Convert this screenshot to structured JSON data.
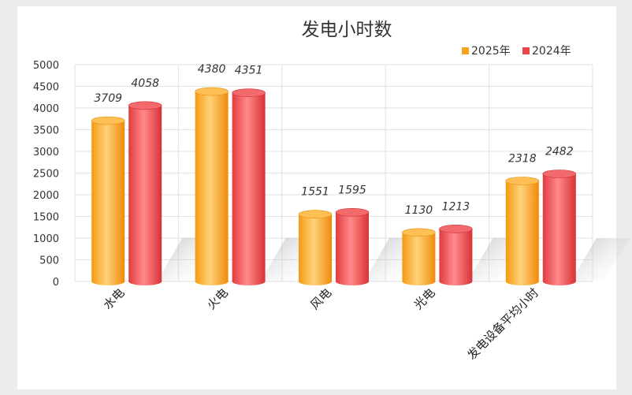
{
  "chart_data": {
    "type": "bar",
    "title": "发电小时数",
    "categories": [
      "水电",
      "火电",
      "风电",
      "光电",
      "发电设备平均小时"
    ],
    "series": [
      {
        "name": "2025年",
        "values": [
          3709,
          4380,
          1551,
          1130,
          2318
        ],
        "labels": [
          "3709",
          "4380",
          "1551",
          "1130",
          "2318"
        ]
      },
      {
        "name": "2024年",
        "values": [
          4058,
          4351,
          1595,
          1213,
          2482
        ],
        "labels": [
          "4058",
          "4351",
          "1595",
          "1213",
          "2482"
        ]
      }
    ],
    "yticks": [
      "0",
      "500",
      "1000",
      "1500",
      "2000",
      "2500",
      "3000",
      "3500",
      "4000",
      "4500",
      "5000"
    ],
    "ylim": [
      0,
      5000
    ],
    "grid": true,
    "legend_position": "top-right",
    "colors": {
      "2025年": "#f7a21b",
      "2024年": "#e9454a"
    }
  }
}
